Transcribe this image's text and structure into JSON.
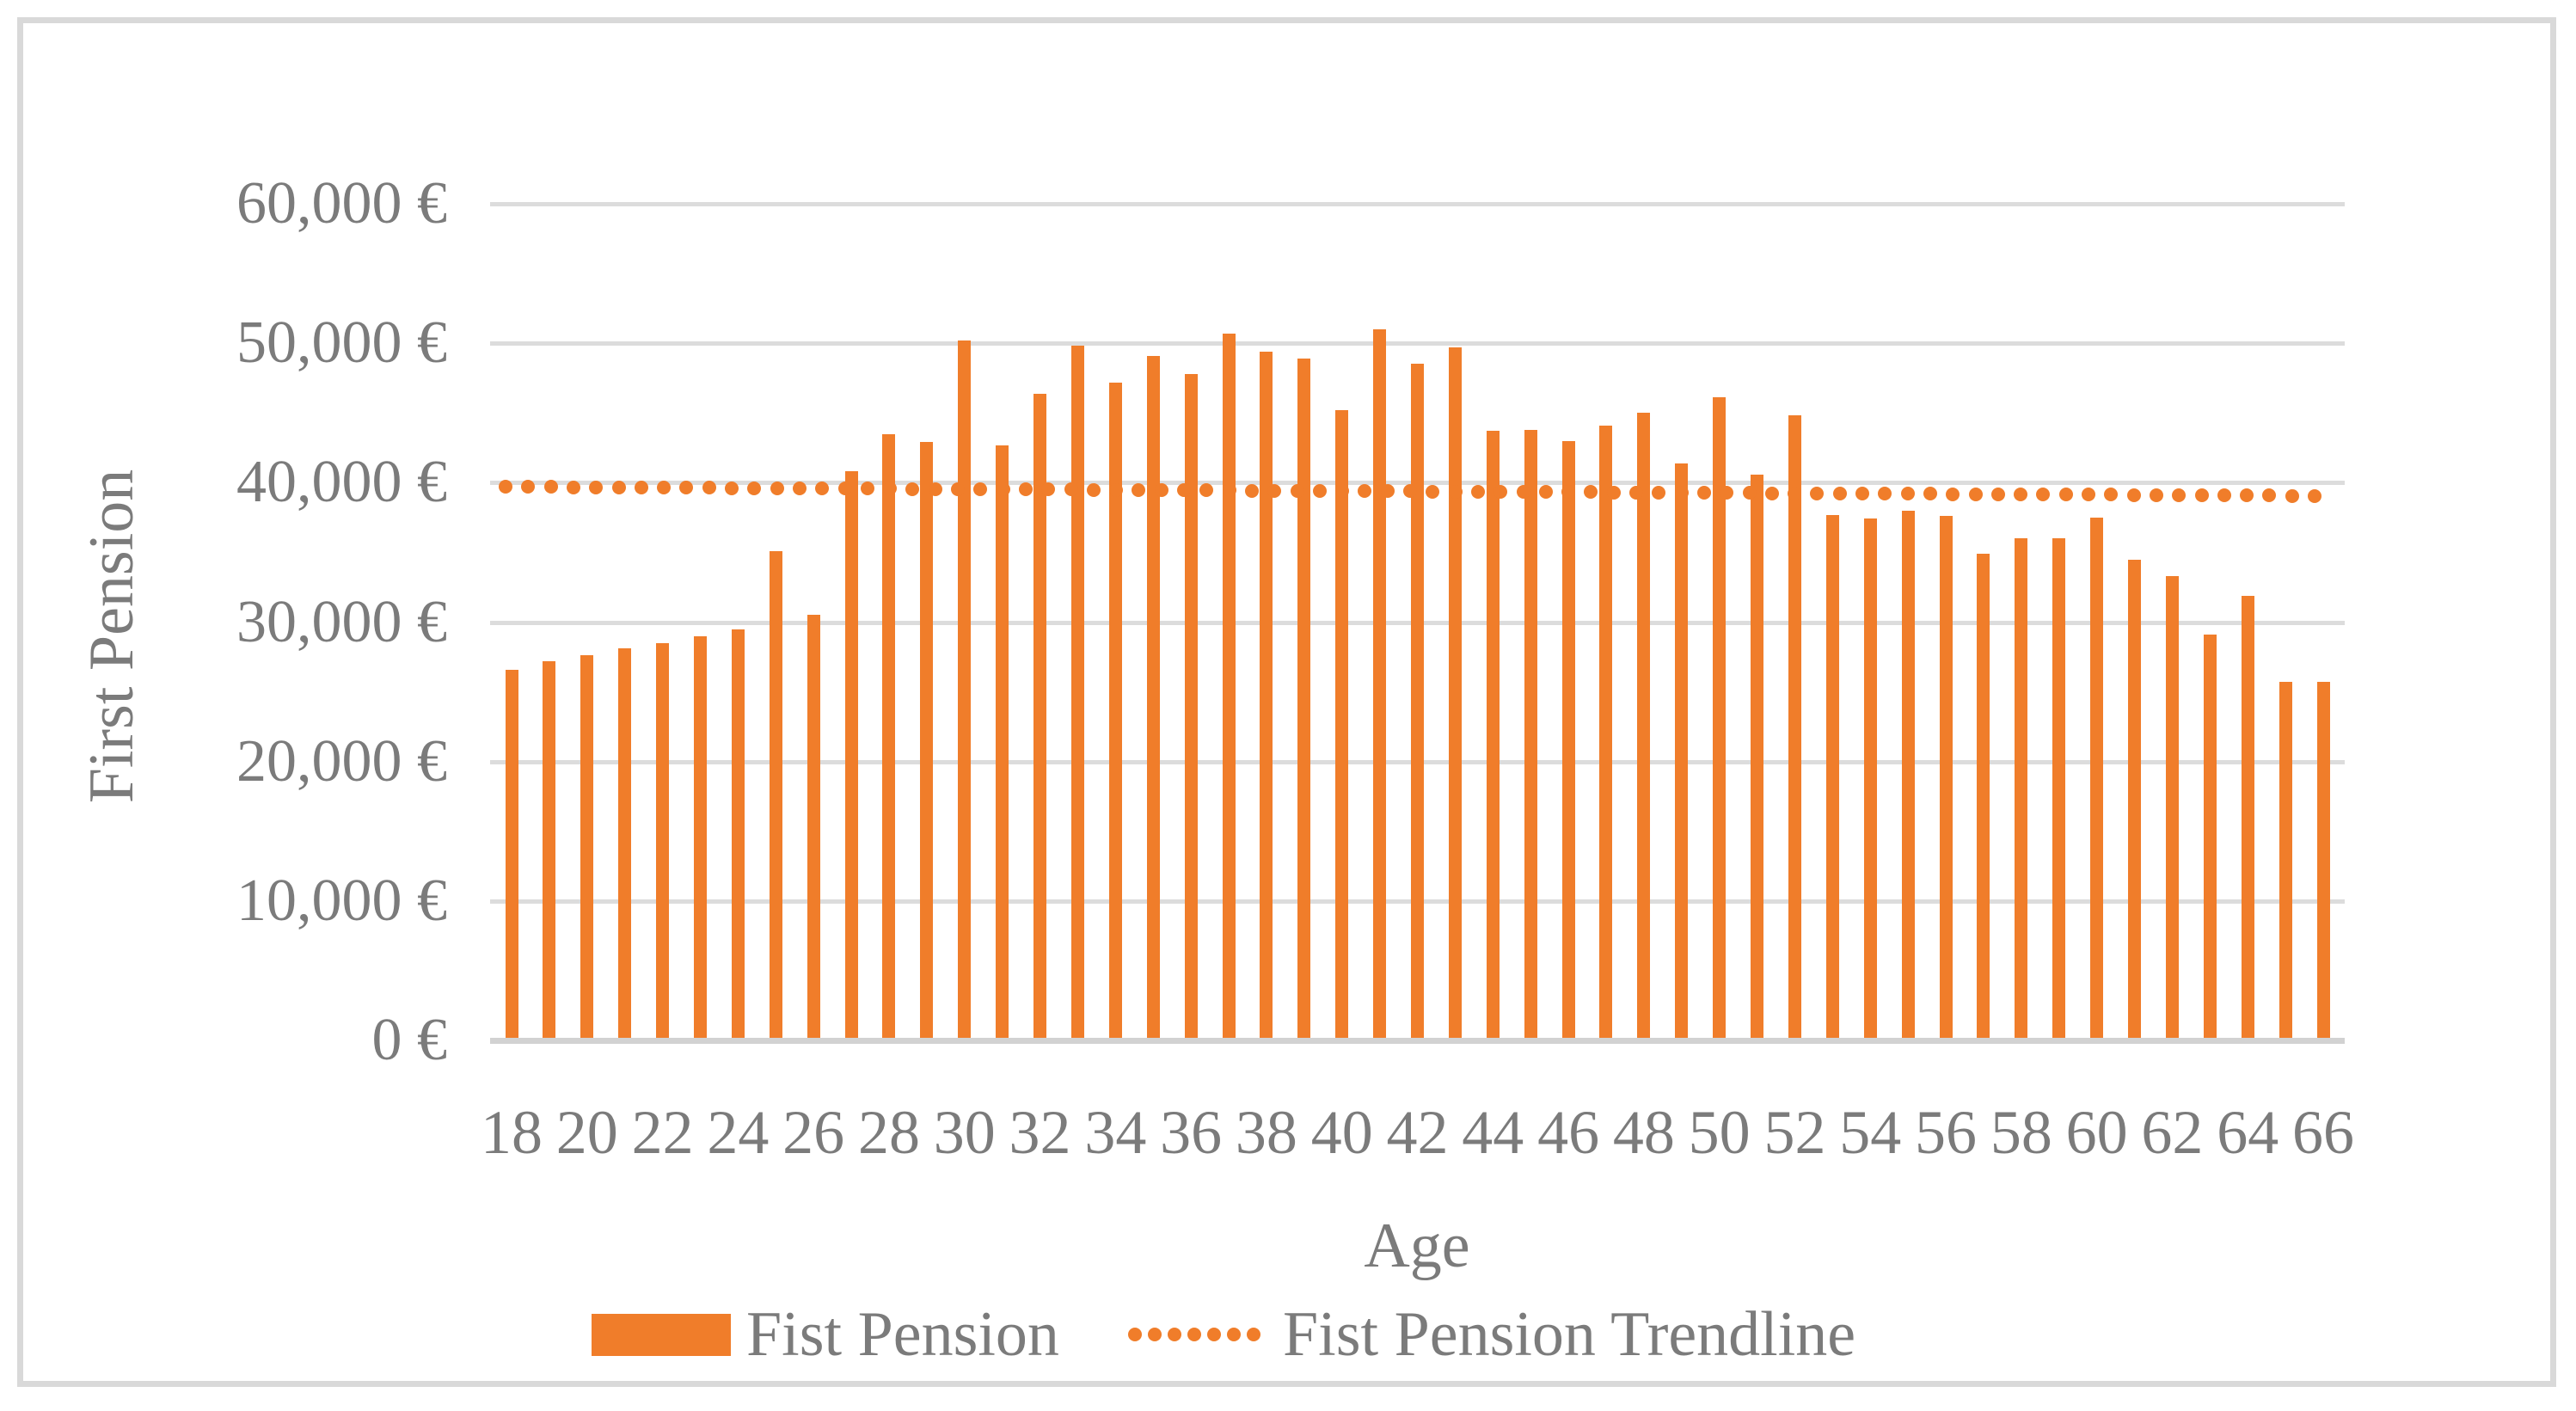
{
  "figure": {
    "background": "#ffffff",
    "frame_border_color": "#D9D9D9"
  },
  "colors": {
    "bar_orange": "#F07D2A",
    "text_gray": "#7B7B7B",
    "gridline_gray": "#DCDCDC",
    "axis_line_gray": "#D2D2D2"
  },
  "chart_data": {
    "type": "bar",
    "title": "",
    "xlabel": "Age",
    "ylabel": "First Pension",
    "ylim": [
      0,
      60000
    ],
    "ytick_interval": 10000,
    "grid": "horizontal",
    "legend_position": "bottom",
    "x": [
      18,
      19,
      20,
      21,
      22,
      23,
      24,
      25,
      26,
      27,
      28,
      29,
      30,
      31,
      32,
      33,
      34,
      35,
      36,
      37,
      38,
      39,
      40,
      41,
      42,
      43,
      44,
      45,
      46,
      47,
      48,
      49,
      50,
      51,
      52,
      53,
      54,
      55,
      56,
      57,
      58,
      59,
      60,
      61,
      62,
      63,
      64,
      65,
      66
    ],
    "series": [
      {
        "name": "Fist Pension",
        "type": "bar",
        "color": "#F07D2A",
        "values": [
          26600,
          27200,
          27600,
          28100,
          28500,
          29000,
          29500,
          35100,
          30500,
          40800,
          43500,
          42900,
          50200,
          42700,
          46400,
          49800,
          47200,
          49100,
          47800,
          50700,
          49400,
          48900,
          45200,
          51000,
          48500,
          49700,
          43700,
          43800,
          43000,
          44100,
          45000,
          41400,
          46100,
          40600,
          44800,
          37700,
          37400,
          38000,
          37600,
          34900,
          36000,
          36000,
          37500,
          34500,
          33300,
          29100,
          31900,
          25700,
          25700
        ]
      },
      {
        "name": "Fist Pension Trendline",
        "type": "dotted-line",
        "color": "#F07D2A",
        "start_value": 39700,
        "end_value": 39050
      }
    ],
    "ytick_labels": [
      "0 €",
      "10,000 €",
      "20,000 €",
      "30,000 €",
      "40,000 €",
      "50,000 €",
      "60,000 €"
    ],
    "xtick_labels": [
      "18",
      "20",
      "22",
      "24",
      "26",
      "28",
      "30",
      "32",
      "34",
      "36",
      "38",
      "40",
      "42",
      "44",
      "46",
      "48",
      "50",
      "52",
      "54",
      "56",
      "58",
      "60",
      "62",
      "64",
      "66"
    ]
  },
  "legend": {
    "items": [
      {
        "label": "Fist Pension",
        "swatch": "bar"
      },
      {
        "label": "Fist Pension Trendline",
        "swatch": "dotted-line"
      }
    ]
  }
}
